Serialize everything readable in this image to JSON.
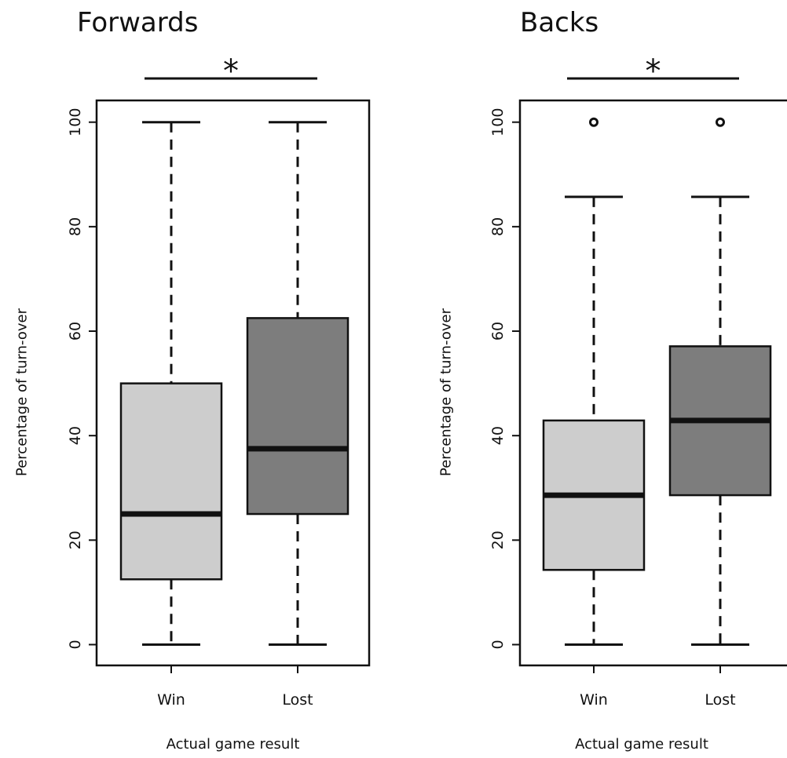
{
  "chart_data": [
    {
      "type": "box",
      "title": "Forwards",
      "xlabel": "Actual game result",
      "ylabel": "Percentage of turn-over",
      "ylim": [
        0,
        104
      ],
      "yticks": [
        0,
        20,
        40,
        60,
        80,
        100
      ],
      "categories": [
        "Win",
        "Lost"
      ],
      "boxes": [
        {
          "category": "Win",
          "min": 0,
          "q1": 12.5,
          "median": 25,
          "q3": 50,
          "max": 100,
          "outliers": [],
          "fill": "#cdcdcd"
        },
        {
          "category": "Lost",
          "min": 0,
          "q1": 25,
          "median": 37.5,
          "q3": 62.5,
          "max": 100,
          "outliers": [],
          "fill": "#7d7d7d"
        }
      ],
      "significance": "*"
    },
    {
      "type": "box",
      "title": "Backs",
      "xlabel": "Actual game result",
      "ylabel": "Percentage of turn-over",
      "ylim": [
        0,
        104
      ],
      "yticks": [
        0,
        20,
        40,
        60,
        80,
        100
      ],
      "categories": [
        "Win",
        "Lost"
      ],
      "boxes": [
        {
          "category": "Win",
          "min": 0,
          "q1": 14.3,
          "median": 28.6,
          "q3": 42.9,
          "max": 85.7,
          "outliers": [
            100
          ],
          "fill": "#cdcdcd"
        },
        {
          "category": "Lost",
          "min": 0,
          "q1": 28.6,
          "median": 42.9,
          "q3": 57.1,
          "max": 85.7,
          "outliers": [
            100
          ],
          "fill": "#7d7d7d"
        }
      ],
      "significance": "*"
    }
  ]
}
